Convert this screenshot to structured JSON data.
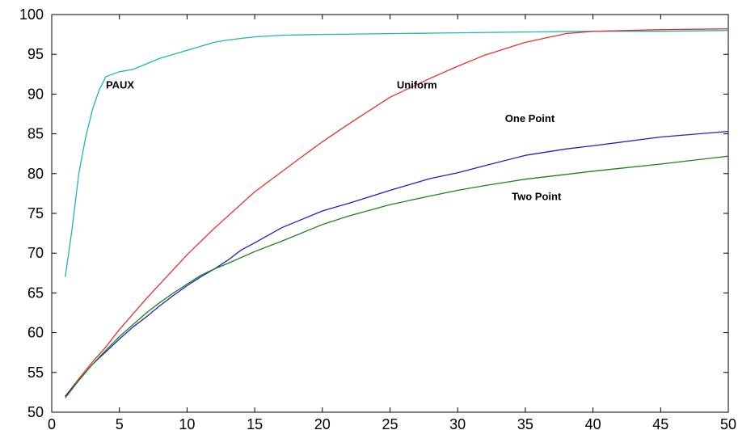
{
  "chart_data": {
    "type": "line",
    "title": "",
    "xlabel": "",
    "ylabel": "",
    "xlim": [
      0,
      50
    ],
    "ylim": [
      50,
      100
    ],
    "x_ticks": [
      0,
      5,
      10,
      15,
      20,
      25,
      30,
      35,
      40,
      45,
      50
    ],
    "y_ticks": [
      50,
      55,
      60,
      65,
      70,
      75,
      80,
      85,
      90,
      95,
      100
    ],
    "grid": false,
    "legend": "none",
    "series": [
      {
        "name": "PAUX",
        "color": "#1fb5b5",
        "label_at": [
          4,
          90.7
        ],
        "x": [
          1,
          1.5,
          2,
          2.5,
          3,
          3.5,
          4,
          5,
          6,
          7,
          8,
          9,
          10,
          11,
          12,
          13,
          14,
          15,
          17,
          20,
          25,
          30,
          35,
          40,
          45,
          50
        ],
        "y": [
          67,
          73,
          80,
          84.5,
          88,
          90.5,
          92.2,
          92.8,
          93.1,
          93.8,
          94.5,
          95,
          95.5,
          96,
          96.5,
          96.8,
          97,
          97.2,
          97.4,
          97.5,
          97.6,
          97.7,
          97.8,
          97.9,
          97.9,
          98
        ]
      },
      {
        "name": "Uniform",
        "color": "#e83030",
        "label_at": [
          25.5,
          90.7
        ],
        "x": [
          1,
          2,
          3,
          4,
          5,
          7,
          10,
          12,
          15,
          18,
          20,
          22,
          25,
          28,
          30,
          32,
          35,
          38,
          40,
          45,
          50
        ],
        "y": [
          52,
          54.2,
          56.3,
          58.2,
          60.4,
          64.3,
          69.8,
          73.1,
          77.7,
          81.5,
          84,
          86.3,
          89.6,
          92,
          93.5,
          94.9,
          96.5,
          97.6,
          97.9,
          98.1,
          98.2
        ]
      },
      {
        "name": "One Point",
        "color": "#2020c8",
        "label_at": [
          33.5,
          86.5
        ],
        "x": [
          1,
          2,
          3,
          4,
          5,
          6,
          7,
          8,
          9,
          10,
          11,
          12,
          13,
          14,
          15,
          17,
          20,
          22,
          25,
          28,
          30,
          32,
          35,
          38,
          40,
          45,
          50
        ],
        "y": [
          52,
          54,
          56,
          57.6,
          59.2,
          60.7,
          62,
          63.4,
          64.7,
          65.9,
          67,
          68,
          69.1,
          70.4,
          71.3,
          73.2,
          75.3,
          76.3,
          77.9,
          79.4,
          80.1,
          81,
          82.3,
          83.1,
          83.5,
          84.6,
          85.3
        ]
      },
      {
        "name": "Two Point",
        "color": "#208020",
        "label_at": [
          34,
          76.7
        ],
        "x": [
          1,
          2,
          3,
          4,
          5,
          6,
          7,
          8,
          9,
          10,
          11,
          12,
          13,
          15,
          17,
          20,
          22,
          25,
          28,
          30,
          32,
          35,
          38,
          40,
          45,
          50
        ],
        "y": [
          51.8,
          54,
          56,
          57.8,
          59.5,
          61,
          62.5,
          63.8,
          65,
          66.1,
          67.2,
          68,
          68.7,
          70.2,
          71.5,
          73.6,
          74.7,
          76.1,
          77.2,
          77.9,
          78.5,
          79.3,
          79.9,
          80.3,
          81.2,
          82.2
        ]
      }
    ]
  }
}
